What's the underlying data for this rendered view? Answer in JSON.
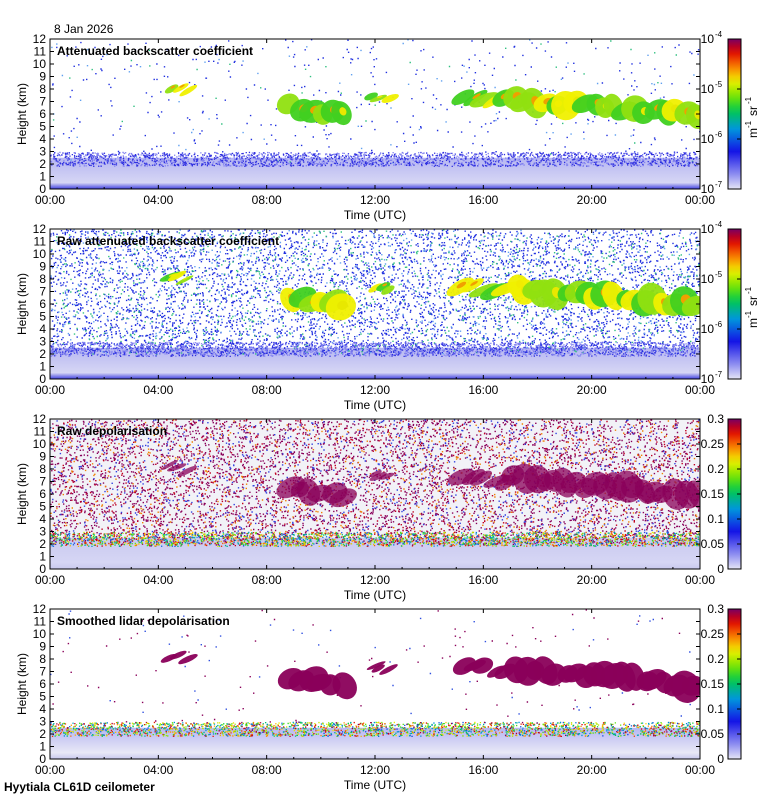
{
  "date_label": "8 Jan 2026",
  "footer_label": "Hyytiala CL61D ceilometer",
  "chart_data": [
    {
      "type": "heatmap",
      "title": "Attenuated backscatter coefficient",
      "xlabel": "Time (UTC)",
      "ylabel": "Height (km)",
      "x_ticks": [
        "00:00",
        "04:00",
        "08:00",
        "12:00",
        "16:00",
        "20:00",
        "00:00"
      ],
      "x_range_hours": [
        0,
        24
      ],
      "y_ticks": [
        0,
        1,
        2,
        3,
        4,
        5,
        6,
        7,
        8,
        9,
        10,
        11,
        12
      ],
      "ylim": [
        0,
        12
      ],
      "colorbar": {
        "scale": "log",
        "range": [
          1e-07,
          0.0001
        ],
        "ticks": [
          "10",
          "10",
          "10",
          "10"
        ],
        "exponents": [
          "-7",
          "-6",
          "-5",
          "-4"
        ],
        "label_unit": "m",
        "label_unit2": "sr",
        "label_exp": "-1"
      },
      "features": {
        "noise_density": 0.06,
        "boundary_layer_top_km": 2.5
      },
      "cloud_layers": [
        {
          "start_h": 4.3,
          "end_h": 5.2,
          "base_km": 7.7,
          "top_km": 8.4
        },
        {
          "start_h": 8.7,
          "end_h": 11.0,
          "base_km": 4.6,
          "top_km": 7.7
        },
        {
          "start_h": 11.8,
          "end_h": 12.6,
          "base_km": 7.0,
          "top_km": 7.7
        },
        {
          "start_h": 15.0,
          "end_h": 17.0,
          "base_km": 6.4,
          "top_km": 8.0
        },
        {
          "start_h": 17.0,
          "end_h": 24.0,
          "base_km": 5.0,
          "top_km": 8.5
        }
      ]
    },
    {
      "type": "heatmap",
      "title": "Raw attenuated backscatter coefficient",
      "xlabel": "Time (UTC)",
      "ylabel": "Height (km)",
      "x_ticks": [
        "00:00",
        "04:00",
        "08:00",
        "12:00",
        "16:00",
        "20:00",
        "00:00"
      ],
      "x_range_hours": [
        0,
        24
      ],
      "y_ticks": [
        0,
        1,
        2,
        3,
        4,
        5,
        6,
        7,
        8,
        9,
        10,
        11,
        12
      ],
      "ylim": [
        0,
        12
      ],
      "colorbar": {
        "scale": "log",
        "range": [
          1e-07,
          0.0001
        ],
        "ticks": [
          "10",
          "10",
          "10",
          "10"
        ],
        "exponents": [
          "-7",
          "-6",
          "-5",
          "-4"
        ],
        "label_unit": "m",
        "label_unit2": "sr",
        "label_exp": "-1"
      },
      "features": {
        "noise_density": 0.75,
        "boundary_layer_top_km": 2.5
      },
      "cloud_layers": [
        {
          "start_h": 4.3,
          "end_h": 5.2,
          "base_km": 7.7,
          "top_km": 8.4
        },
        {
          "start_h": 8.7,
          "end_h": 11.0,
          "base_km": 4.6,
          "top_km": 7.7
        },
        {
          "start_h": 11.8,
          "end_h": 12.6,
          "base_km": 7.0,
          "top_km": 7.7
        },
        {
          "start_h": 15.0,
          "end_h": 17.0,
          "base_km": 6.4,
          "top_km": 8.0
        },
        {
          "start_h": 17.0,
          "end_h": 24.0,
          "base_km": 5.0,
          "top_km": 8.5
        }
      ]
    },
    {
      "type": "heatmap",
      "title": "Raw depolarisation",
      "xlabel": "Time (UTC)",
      "ylabel": "Height (km)",
      "x_ticks": [
        "00:00",
        "04:00",
        "08:00",
        "12:00",
        "16:00",
        "20:00",
        "00:00"
      ],
      "x_range_hours": [
        0,
        24
      ],
      "y_ticks": [
        0,
        1,
        2,
        3,
        4,
        5,
        6,
        7,
        8,
        9,
        10,
        11,
        12
      ],
      "ylim": [
        0,
        12
      ],
      "colorbar": {
        "scale": "linear",
        "range": [
          0,
          0.3
        ],
        "ticks": [
          "0",
          "0.05",
          "0.1",
          "0.15",
          "0.2",
          "0.25",
          "0.3"
        ]
      },
      "features": {
        "noise_density": 0.9,
        "boundary_layer_top_km": 2.5
      },
      "cloud_layers": [
        {
          "start_h": 4.3,
          "end_h": 5.2,
          "base_km": 7.7,
          "top_km": 8.4
        },
        {
          "start_h": 8.7,
          "end_h": 11.0,
          "base_km": 4.6,
          "top_km": 7.7
        },
        {
          "start_h": 11.8,
          "end_h": 12.6,
          "base_km": 7.0,
          "top_km": 7.7
        },
        {
          "start_h": 15.0,
          "end_h": 17.0,
          "base_km": 6.4,
          "top_km": 8.0
        },
        {
          "start_h": 17.0,
          "end_h": 24.0,
          "base_km": 5.0,
          "top_km": 8.5
        }
      ]
    },
    {
      "type": "heatmap",
      "title": "Smoothed lidar depolarisation",
      "xlabel": "Time (UTC)",
      "ylabel": "Height (km)",
      "x_ticks": [
        "00:00",
        "04:00",
        "08:00",
        "12:00",
        "16:00",
        "20:00",
        "00:00"
      ],
      "x_range_hours": [
        0,
        24
      ],
      "y_ticks": [
        0,
        1,
        2,
        3,
        4,
        5,
        6,
        7,
        8,
        9,
        10,
        11,
        12
      ],
      "ylim": [
        0,
        12
      ],
      "colorbar": {
        "scale": "linear",
        "range": [
          0,
          0.3
        ],
        "ticks": [
          "0",
          "0.05",
          "0.1",
          "0.15",
          "0.2",
          "0.25",
          "0.3"
        ]
      },
      "features": {
        "noise_density": 0.02,
        "boundary_layer_top_km": 2.5
      },
      "cloud_layers": [
        {
          "start_h": 4.3,
          "end_h": 5.2,
          "base_km": 7.7,
          "top_km": 8.4
        },
        {
          "start_h": 8.7,
          "end_h": 11.0,
          "base_km": 4.6,
          "top_km": 7.7
        },
        {
          "start_h": 11.8,
          "end_h": 12.6,
          "base_km": 7.0,
          "top_km": 7.7
        },
        {
          "start_h": 15.0,
          "end_h": 17.0,
          "base_km": 6.4,
          "top_km": 8.0
        },
        {
          "start_h": 17.0,
          "end_h": 24.0,
          "base_km": 5.0,
          "top_km": 8.5
        }
      ]
    }
  ]
}
